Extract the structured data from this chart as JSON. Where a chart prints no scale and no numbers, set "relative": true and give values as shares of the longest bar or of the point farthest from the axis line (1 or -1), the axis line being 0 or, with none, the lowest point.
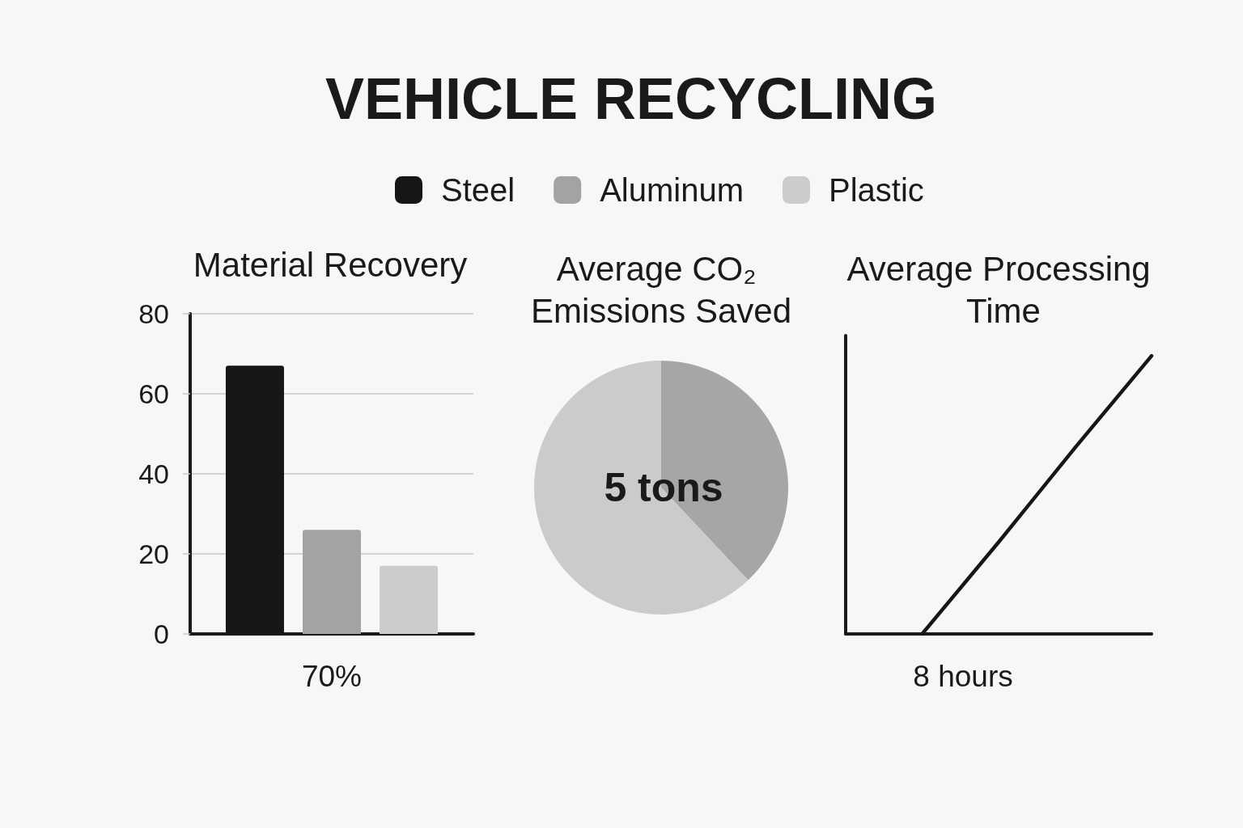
{
  "chart_data": [
    {
      "type": "bar",
      "title": "VEHICLE RECYCLING",
      "subtitle": "Material Recovery",
      "xlabel": "70%",
      "categories": [
        null
      ],
      "series": [
        {
          "name": "Steel",
          "color": "#161616",
          "values": [
            67
          ]
        },
        {
          "name": "Aluminum",
          "color": "#a3a3a3",
          "values": [
            26
          ]
        },
        {
          "name": "Plastic",
          "color": "#cccccc",
          "values": [
            17
          ]
        }
      ],
      "ylim": [
        0,
        80
      ],
      "yticks": [
        0,
        20,
        40,
        60,
        80
      ],
      "grid": "y",
      "legend": "top"
    },
    {
      "type": "pie",
      "title": "Average CO₂ Emissions Saved",
      "categories": [
        null,
        null
      ],
      "values": [
        38,
        62
      ],
      "colors": [
        "#a6a6a6",
        "#cbcbcb"
      ],
      "annotations": [
        "5 tons"
      ]
    },
    {
      "type": "line",
      "title": "Average Processing Time",
      "xlabel": "8 hours",
      "categories": [
        null,
        null,
        null,
        null,
        null
      ],
      "values": [
        null,
        0,
        0.33,
        0.67,
        1
      ],
      "color": "#161616",
      "relative": true,
      "marker": "none"
    }
  ]
}
